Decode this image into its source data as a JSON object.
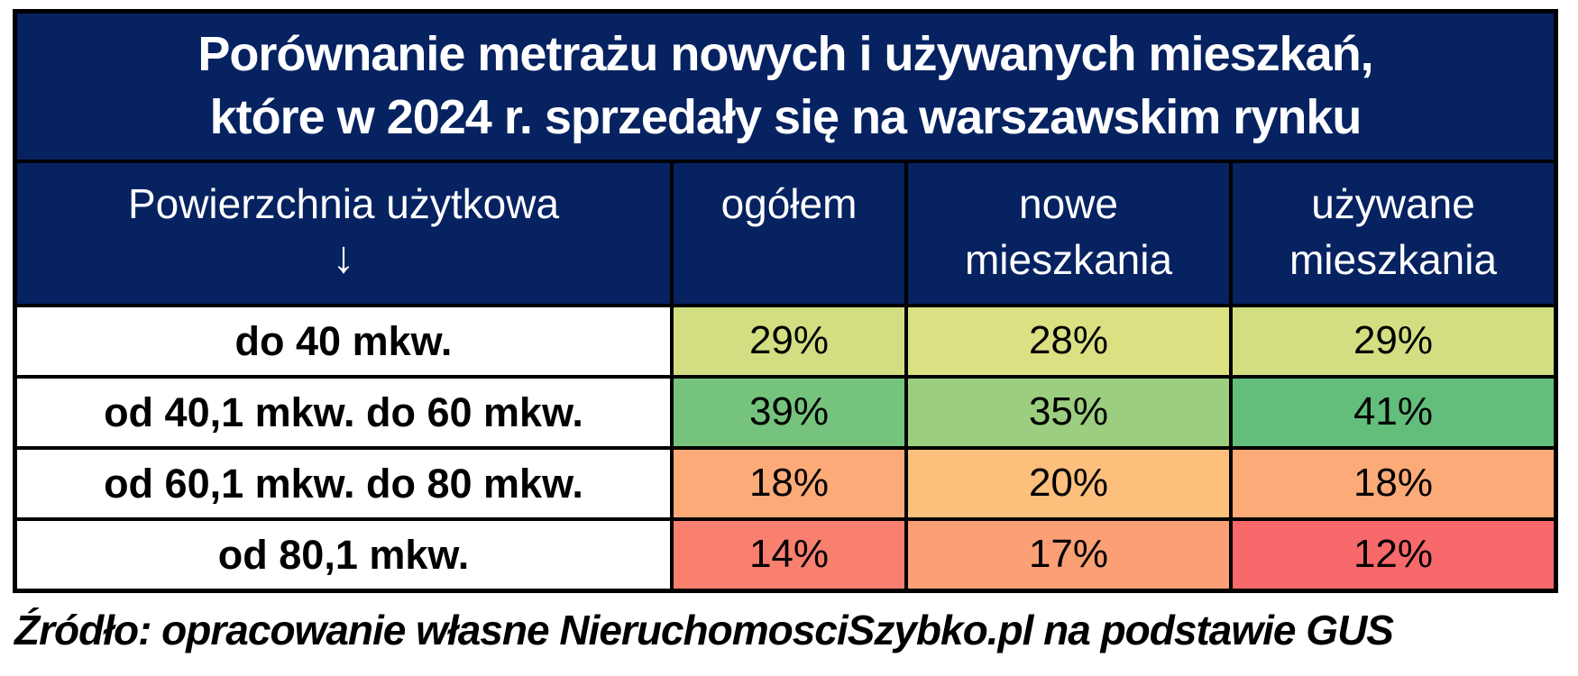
{
  "title": {
    "line1": "Porównanie metrażu nowych i używanych mieszkań,",
    "line2": "które w 2024 r. sprzedały się na warszawskim rynku"
  },
  "header": {
    "col1_label": "Powierzchnia użytkowa",
    "col1_arrow": "↓",
    "col2_label": "ogółem",
    "col3_line1": "nowe",
    "col3_line2": "mieszkania",
    "col4_line1": "używane",
    "col4_line2": "mieszkania"
  },
  "rows": [
    {
      "label": "do 40 mkw.",
      "cells": [
        {
          "value": "29%",
          "color": "#D2DE81"
        },
        {
          "value": "28%",
          "color": "#DBE082"
        },
        {
          "value": "29%",
          "color": "#D2DE81"
        }
      ]
    },
    {
      "label": "od 40,1 mkw. do 60 mkw.",
      "cells": [
        {
          "value": "39%",
          "color": "#75C37C"
        },
        {
          "value": "35%",
          "color": "#9BCE7E"
        },
        {
          "value": "41%",
          "color": "#63BE7B"
        }
      ]
    },
    {
      "label": "od 60,1 mkw. do 80 mkw.",
      "cells": [
        {
          "value": "18%",
          "color": "#FBAA78"
        },
        {
          "value": "20%",
          "color": "#FCBF7C"
        },
        {
          "value": "18%",
          "color": "#FBAA78"
        }
      ]
    },
    {
      "label": "od 80,1 mkw.",
      "cells": [
        {
          "value": "14%",
          "color": "#F97F6F"
        },
        {
          "value": "17%",
          "color": "#FB9F75"
        },
        {
          "value": "12%",
          "color": "#F8696B"
        }
      ]
    }
  ],
  "footer": {
    "source": "Źródło: opracowanie własne NieruchomosciSzybko.pl na podstawie GUS"
  },
  "colors": {
    "header_bg": "#062261",
    "border": "#000000",
    "title_text": "#ffffff"
  },
  "chart_data": {
    "type": "table",
    "title": "Porównanie metrażu nowych i używanych mieszkań, które w 2024 r. sprzedały się na warszawskim rynku",
    "row_header": "Powierzchnia użytkowa",
    "columns": [
      "ogółem",
      "nowe mieszkania",
      "używane mieszkania"
    ],
    "categories": [
      "do 40 mkw.",
      "od 40,1 mkw. do 60 mkw.",
      "od 60,1 mkw. do 80 mkw.",
      "od 80,1 mkw."
    ],
    "unit": "%",
    "series": [
      {
        "name": "ogółem",
        "values": [
          29,
          39,
          18,
          14
        ]
      },
      {
        "name": "nowe mieszkania",
        "values": [
          28,
          35,
          20,
          17
        ]
      },
      {
        "name": "używane mieszkania",
        "values": [
          29,
          41,
          18,
          12
        ]
      }
    ],
    "cell_colors_note": "red-yellow-green 3-color scale, low=red high=green",
    "source": "Źródło: opracowanie własne NieruchomosciSzybko.pl na podstawie GUS"
  }
}
